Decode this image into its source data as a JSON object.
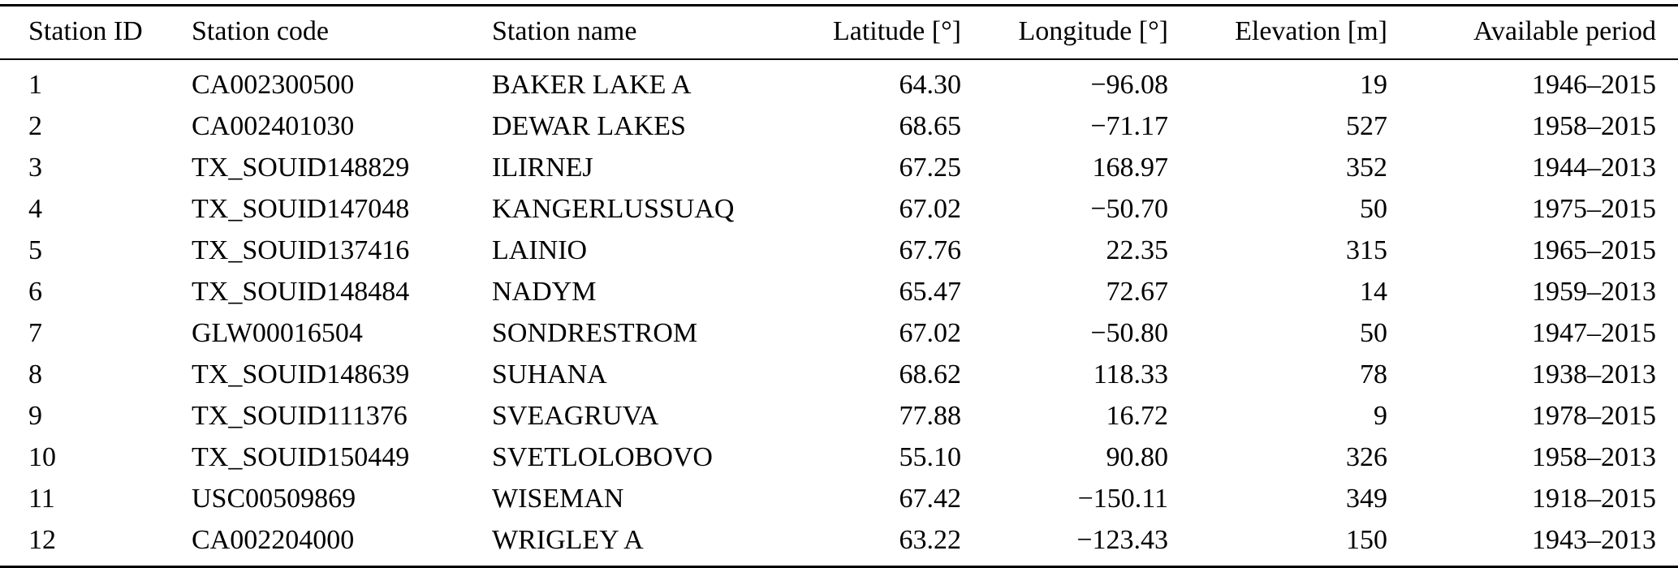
{
  "table": {
    "columns": [
      {
        "key": "station-id",
        "label": "Station ID",
        "align": "left"
      },
      {
        "key": "station-code",
        "label": "Station code",
        "align": "left"
      },
      {
        "key": "station-name",
        "label": "Station name",
        "align": "left"
      },
      {
        "key": "latitude",
        "label": "Latitude [°]",
        "align": "right"
      },
      {
        "key": "longitude",
        "label": "Longitude [°]",
        "align": "right"
      },
      {
        "key": "elevation",
        "label": "Elevation [m]",
        "align": "right"
      },
      {
        "key": "available-period",
        "label": "Available period",
        "align": "right"
      }
    ],
    "rows": [
      [
        "1",
        "CA002300500",
        "BAKER LAKE A",
        "64.30",
        "−96.08",
        "19",
        "1946–2015"
      ],
      [
        "2",
        "CA002401030",
        "DEWAR LAKES",
        "68.65",
        "−71.17",
        "527",
        "1958–2015"
      ],
      [
        "3",
        "TX_SOUID148829",
        "ILIRNEJ",
        "67.25",
        "168.97",
        "352",
        "1944–2013"
      ],
      [
        "4",
        "TX_SOUID147048",
        "KANGERLUSSUAQ",
        "67.02",
        "−50.70",
        "50",
        "1975–2015"
      ],
      [
        "5",
        "TX_SOUID137416",
        "LAINIO",
        "67.76",
        "22.35",
        "315",
        "1965–2015"
      ],
      [
        "6",
        "TX_SOUID148484",
        "NADYM",
        "65.47",
        "72.67",
        "14",
        "1959–2013"
      ],
      [
        "7",
        "GLW00016504",
        "SONDRESTROM",
        "67.02",
        "−50.80",
        "50",
        "1947–2015"
      ],
      [
        "8",
        "TX_SOUID148639",
        "SUHANA",
        "68.62",
        "118.33",
        "78",
        "1938–2013"
      ],
      [
        "9",
        "TX_SOUID111376",
        "SVEAGRUVA",
        "77.88",
        "16.72",
        "9",
        "1978–2015"
      ],
      [
        "10",
        "TX_SOUID150449",
        "SVETLOLOBOVO",
        "55.10",
        "90.80",
        "326",
        "1958–2013"
      ],
      [
        "11",
        "USC00509869",
        "WISEMAN",
        "67.42",
        "−150.11",
        "349",
        "1918–2015"
      ],
      [
        "12",
        "CA002204000",
        "WRIGLEY A",
        "63.22",
        "−123.43",
        "150",
        "1943–2013"
      ]
    ],
    "colors": {
      "rule": "#000000",
      "text": "#000000",
      "background": "#ffffff"
    }
  }
}
